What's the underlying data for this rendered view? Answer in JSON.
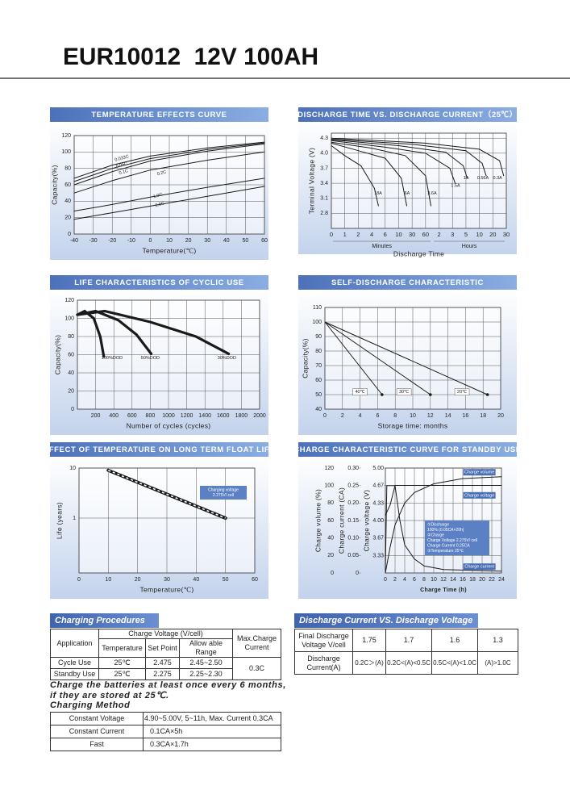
{
  "header": {
    "title": "EUR10012  12V 100AH"
  },
  "charts": [
    {
      "type": "line",
      "title": "TEMPERATURE EFFECTS CURVE",
      "xlabel": "Temperature(℃)",
      "ylabel": "Capacity(%)",
      "xlim": [
        -40,
        60
      ],
      "ylim": [
        0,
        120
      ],
      "xticks": [
        -40,
        -30,
        -20,
        -10,
        0,
        10,
        20,
        30,
        40,
        50,
        60
      ],
      "yticks": [
        0,
        20,
        40,
        60,
        80,
        100,
        120
      ],
      "series": [
        {
          "name": "0.033C",
          "x": [
            -40,
            -20,
            0,
            30,
            60
          ],
          "y": [
            68,
            84,
            95,
            105,
            112
          ]
        },
        {
          "name": "0.05C",
          "x": [
            -40,
            -20,
            0,
            30,
            60
          ],
          "y": [
            64,
            80,
            92,
            103,
            111
          ]
        },
        {
          "name": "0.1C",
          "x": [
            -40,
            -20,
            0,
            30,
            60
          ],
          "y": [
            60,
            76,
            89,
            101,
            110
          ]
        },
        {
          "name": "0.2C",
          "x": [
            -40,
            -20,
            0,
            30,
            60
          ],
          "y": [
            50,
            65,
            78,
            90,
            100
          ]
        },
        {
          "name": "1.0C",
          "x": [
            -40,
            -20,
            0,
            30,
            60
          ],
          "y": [
            28,
            36,
            45,
            57,
            68
          ]
        },
        {
          "name": "2.0C",
          "x": [
            -40,
            -20,
            0,
            30,
            60
          ],
          "y": [
            18,
            26,
            34,
            46,
            58
          ]
        }
      ]
    },
    {
      "type": "line",
      "title": "DISCHARGE TIME VS. DISCHARGE CURRENT（25℃）",
      "xlabel": "Discharge Time",
      "ylabel": "Terminal Voltage (V)",
      "xcategories": [
        "0",
        "1",
        "2",
        "4",
        "6",
        "10",
        "30",
        "60",
        "2",
        "3",
        "5",
        "10",
        "20",
        "30"
      ],
      "x_groups": [
        "Minutes",
        "Hours"
      ],
      "ylim": [
        2.5,
        4.4
      ],
      "yticks": [
        2.8,
        3.1,
        3.4,
        3.7,
        {
          "value": 4,
          "label": "4.0"
        },
        4.3
      ],
      "series": [
        {
          "name": "18A",
          "x": [
            0,
            1,
            2.2,
            3.2,
            3.5
          ],
          "y": [
            4.15,
            3.95,
            3.75,
            3.3,
            2.95
          ]
        },
        {
          "name": "6A",
          "x": [
            0,
            2,
            4,
            5.2,
            5.6
          ],
          "y": [
            4.2,
            4.05,
            3.9,
            3.5,
            2.95
          ]
        },
        {
          "name": "3.6A",
          "x": [
            0,
            3,
            5.5,
            7,
            7.4
          ],
          "y": [
            4.22,
            4.1,
            3.95,
            3.55,
            2.95
          ]
        },
        {
          "name": "1.5A",
          "x": [
            0,
            4,
            7,
            8.8,
            9.2
          ],
          "y": [
            4.25,
            4.12,
            4.0,
            3.7,
            3.4
          ]
        },
        {
          "name": "1A",
          "x": [
            0,
            5,
            8.5,
            9.8,
            10.1
          ],
          "y": [
            4.27,
            4.15,
            4.02,
            3.75,
            3.5
          ]
        },
        {
          "name": "0.56A",
          "x": [
            0,
            6,
            10,
            11.2,
            11.5
          ],
          "y": [
            4.28,
            4.18,
            4.05,
            3.8,
            3.55
          ]
        },
        {
          "name": "0.3A",
          "x": [
            0,
            7,
            11,
            12.5,
            12.8
          ],
          "y": [
            4.3,
            4.2,
            4.08,
            3.85,
            3.55
          ]
        }
      ]
    },
    {
      "type": "line",
      "title": "LIFE CHARACTERISTICS OF CYCLIC USE",
      "xlabel": "Number of cycles (cycles)",
      "ylabel": "Capacity(%)",
      "xlim": [
        0,
        2000
      ],
      "ylim": [
        0,
        120
      ],
      "xticks": [
        200,
        400,
        600,
        800,
        1000,
        1200,
        1400,
        1600,
        1800,
        2000
      ],
      "yticks": [
        0,
        20,
        40,
        60,
        80,
        100,
        120
      ],
      "series": [
        {
          "name": "100%DOD",
          "x": [
            0,
            80,
            180,
            250,
            290
          ],
          "y": [
            104,
            108,
            100,
            80,
            58
          ]
        },
        {
          "name": "50%DOD",
          "x": [
            0,
            200,
            450,
            650,
            810
          ],
          "y": [
            104,
            108,
            98,
            82,
            61
          ]
        },
        {
          "name": "30%DOD",
          "x": [
            0,
            300,
            800,
            1300,
            1660
          ],
          "y": [
            104,
            108,
            96,
            80,
            61
          ]
        }
      ]
    },
    {
      "type": "line",
      "title": "SELF-DISCHARGE CHARACTERISTIC",
      "xlabel": "Storage time: months",
      "ylabel": "Capacity(%)",
      "xlim": [
        0,
        20
      ],
      "ylim": [
        40,
        110
      ],
      "xticks": [
        0,
        2,
        4,
        6,
        8,
        10,
        12,
        14,
        16,
        18,
        20
      ],
      "yticks": [
        40,
        50,
        60,
        70,
        80,
        90,
        100,
        110
      ],
      "series": [
        {
          "name": "40℃",
          "x": [
            0,
            6.5
          ],
          "y": [
            100,
            50
          ]
        },
        {
          "name": "30℃",
          "x": [
            0,
            12
          ],
          "y": [
            100,
            50
          ]
        },
        {
          "name": "20℃",
          "x": [
            0,
            18.5
          ],
          "y": [
            100,
            50
          ]
        }
      ]
    },
    {
      "type": "line",
      "title": "EFFECT OF TEMPERATURE ON LONG TERM FLOAT LIFE",
      "xlabel": "Temperature(℃)",
      "ylabel": "Life (years)",
      "xlim": [
        0,
        60
      ],
      "ylim": [
        0.08,
        10
      ],
      "ylog": true,
      "xticks": [
        0,
        10,
        20,
        30,
        40,
        50,
        60
      ],
      "yticks": [
        1,
        10
      ],
      "annotation": [
        "Charging voltage",
        "2.275V/ cell"
      ],
      "series": [
        {
          "x": [
            10,
            50
          ],
          "y": [
            9,
            1
          ]
        }
      ]
    },
    {
      "type": "line",
      "title": "CHARGE CHARACTERISTIC CURVE FOR STANDBY USE",
      "xlabel": "Charge Time (h)",
      "ylabels": [
        "Charge volume (%)",
        "Charge current (CA)",
        "Charge voltage (V)"
      ],
      "xlim": [
        0,
        24
      ],
      "xticks": [
        0,
        2,
        4,
        6,
        8,
        10,
        12,
        14,
        16,
        18,
        20,
        22,
        24
      ],
      "ylim": [
        0,
        120
      ],
      "yticks": [
        0,
        20,
        40,
        60,
        80,
        100,
        120
      ],
      "y2lim": [
        0,
        0.3
      ],
      "y2ticks": [
        0,
        0.05,
        {
          "value": 0.1,
          "label": "0.10"
        },
        0.15,
        {
          "value": 0.2,
          "label": "0.20"
        },
        0.25,
        {
          "value": 0.3,
          "label": "0.30"
        }
      ],
      "y3lim": [
        3,
        5
      ],
      "y3ticks": [
        3.33,
        3.67,
        {
          "value": 4,
          "label": "4.00"
        },
        4.33,
        4.67,
        {
          "value": 5,
          "label": "5.00"
        }
      ],
      "annotation": [
        "①Discharge",
        "100% (0.05CA×20h)",
        "②Charge",
        "Charge Voltage 2.275V/ cell",
        "Charge Current 0.25CA",
        "③Temperature 25℃"
      ],
      "series": [
        {
          "name": "Charge volume",
          "x": [
            0,
            1,
            2,
            4,
            6,
            10,
            16,
            24
          ],
          "y": [
            0,
            30,
            55,
            80,
            92,
            102,
            108,
            110
          ]
        },
        {
          "name": "Charge voltage",
          "axis": "y3",
          "x": [
            0,
            1,
            2,
            3,
            24
          ],
          "y": [
            4.1,
            4.3,
            4.67,
            4.67,
            4.67
          ]
        },
        {
          "name": "Charge current",
          "axis": "y2",
          "x": [
            0,
            0.3,
            2,
            3,
            4,
            6,
            8,
            12,
            24
          ],
          "y": [
            0.01,
            0.25,
            0.25,
            0.15,
            0.08,
            0.04,
            0.02,
            0.01,
            0.005
          ]
        }
      ]
    }
  ],
  "charging_procedures": {
    "title": "Charging Procedures",
    "application": "Application",
    "charge_voltage": "Charge Voltage (V/cell)",
    "max_current": "Max.Charge Current",
    "subhead": [
      "Temperature",
      "Set Point",
      "Allow able Range"
    ],
    "rows": [
      [
        "Cycle Use",
        "25℃",
        "2.475",
        "2.45~2.50"
      ],
      [
        "Standby Use",
        "25℃",
        "2.275",
        "2.25~2.30"
      ]
    ],
    "current": "0.3C"
  },
  "discharge_table": {
    "title": "Discharge Current VS. Discharge Voltage",
    "rows": [
      [
        "Final Discharge Voltage V/cell",
        "1.75",
        "1.7",
        "1.6",
        "1.3"
      ],
      [
        "Discharge Current(A)",
        "0.2C＞(A)",
        "0.2C<(A)<0.5C",
        "0.5C<(A)<1.0C",
        "(A)>1.0C"
      ]
    ]
  },
  "note": "Charge the batteries at least once every 6 months, if they are stored at 25℃.",
  "charging_method": {
    "title": "Charging Method",
    "rows": [
      [
        "Constant Voltage",
        "4.90~5.00V, 5~11h, Max. Current 0.3CA"
      ],
      [
        "Constant Current",
        "0.1CA×5h"
      ],
      [
        "Fast",
        "0.3CA×1.7h"
      ]
    ]
  }
}
